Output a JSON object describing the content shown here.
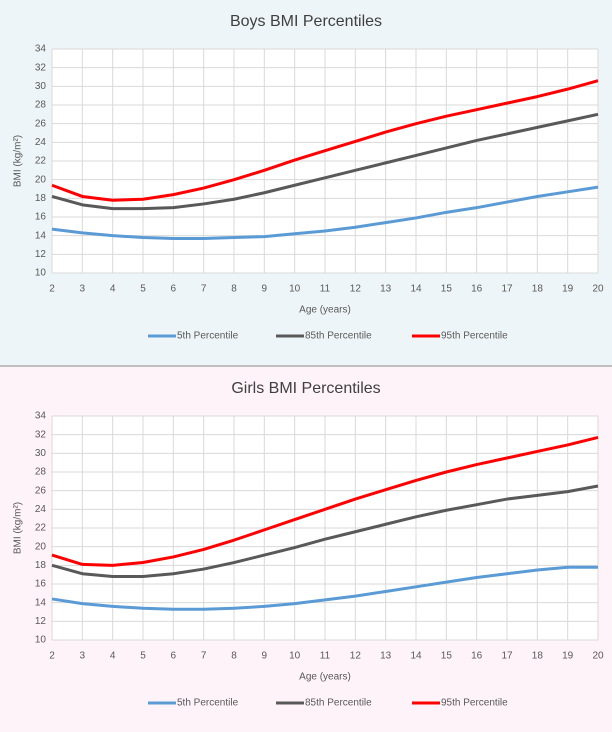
{
  "chart_data": [
    {
      "type": "line",
      "title": "Boys BMI Percentiles",
      "xlabel": "Age (years)",
      "ylabel": "BMI (kg/m²)",
      "x": [
        2,
        3,
        4,
        5,
        6,
        7,
        8,
        9,
        10,
        11,
        12,
        13,
        14,
        15,
        16,
        17,
        18,
        19,
        20
      ],
      "series": [
        {
          "name": "5th Percentile",
          "color": "#5b9bd5",
          "values": [
            14.7,
            14.3,
            14.0,
            13.8,
            13.7,
            13.7,
            13.8,
            13.9,
            14.2,
            14.5,
            14.9,
            15.4,
            15.9,
            16.5,
            17.0,
            17.6,
            18.2,
            18.7,
            19.2
          ]
        },
        {
          "name": "85th Percentile",
          "color": "#595959",
          "values": [
            18.2,
            17.3,
            16.9,
            16.9,
            17.0,
            17.4,
            17.9,
            18.6,
            19.4,
            20.2,
            21.0,
            21.8,
            22.6,
            23.4,
            24.2,
            24.9,
            25.6,
            26.3,
            27.0
          ]
        },
        {
          "name": "95th Percentile",
          "color": "#ff0000",
          "values": [
            19.4,
            18.2,
            17.8,
            17.9,
            18.4,
            19.1,
            20.0,
            21.0,
            22.1,
            23.1,
            24.1,
            25.1,
            26.0,
            26.8,
            27.5,
            28.2,
            28.9,
            29.7,
            30.6
          ]
        }
      ],
      "xlim": [
        2,
        20
      ],
      "xticks": [
        2,
        3,
        4,
        5,
        6,
        7,
        8,
        9,
        10,
        11,
        12,
        13,
        14,
        15,
        16,
        17,
        18,
        19,
        20
      ],
      "ylim": [
        10,
        34
      ],
      "yticks": [
        10,
        12,
        14,
        16,
        18,
        20,
        22,
        24,
        26,
        28,
        30,
        32,
        34
      ],
      "grid": true,
      "legend": "bottom"
    },
    {
      "type": "line",
      "title": "Girls BMI Percentiles",
      "xlabel": "Age (years)",
      "ylabel": "BMI (kg/m²)",
      "x": [
        2,
        3,
        4,
        5,
        6,
        7,
        8,
        9,
        10,
        11,
        12,
        13,
        14,
        15,
        16,
        17,
        18,
        19,
        20
      ],
      "series": [
        {
          "name": "5th Percentile",
          "color": "#5b9bd5",
          "values": [
            14.4,
            13.9,
            13.6,
            13.4,
            13.3,
            13.3,
            13.4,
            13.6,
            13.9,
            14.3,
            14.7,
            15.2,
            15.7,
            16.2,
            16.7,
            17.1,
            17.5,
            17.8,
            17.8
          ]
        },
        {
          "name": "85th Percentile",
          "color": "#595959",
          "values": [
            18.0,
            17.1,
            16.8,
            16.8,
            17.1,
            17.6,
            18.3,
            19.1,
            19.9,
            20.8,
            21.6,
            22.4,
            23.2,
            23.9,
            24.5,
            25.1,
            25.5,
            25.9,
            26.5
          ]
        },
        {
          "name": "95th Percentile",
          "color": "#ff0000",
          "values": [
            19.1,
            18.1,
            18.0,
            18.3,
            18.9,
            19.7,
            20.7,
            21.8,
            22.9,
            24.0,
            25.1,
            26.1,
            27.1,
            28.0,
            28.8,
            29.5,
            30.2,
            30.9,
            31.7
          ]
        }
      ],
      "xlim": [
        2,
        20
      ],
      "xticks": [
        2,
        3,
        4,
        5,
        6,
        7,
        8,
        9,
        10,
        11,
        12,
        13,
        14,
        15,
        16,
        17,
        18,
        19,
        20
      ],
      "ylim": [
        10,
        34
      ],
      "yticks": [
        10,
        12,
        14,
        16,
        18,
        20,
        22,
        24,
        26,
        28,
        30,
        32,
        34
      ],
      "grid": true,
      "legend": "bottom"
    }
  ]
}
